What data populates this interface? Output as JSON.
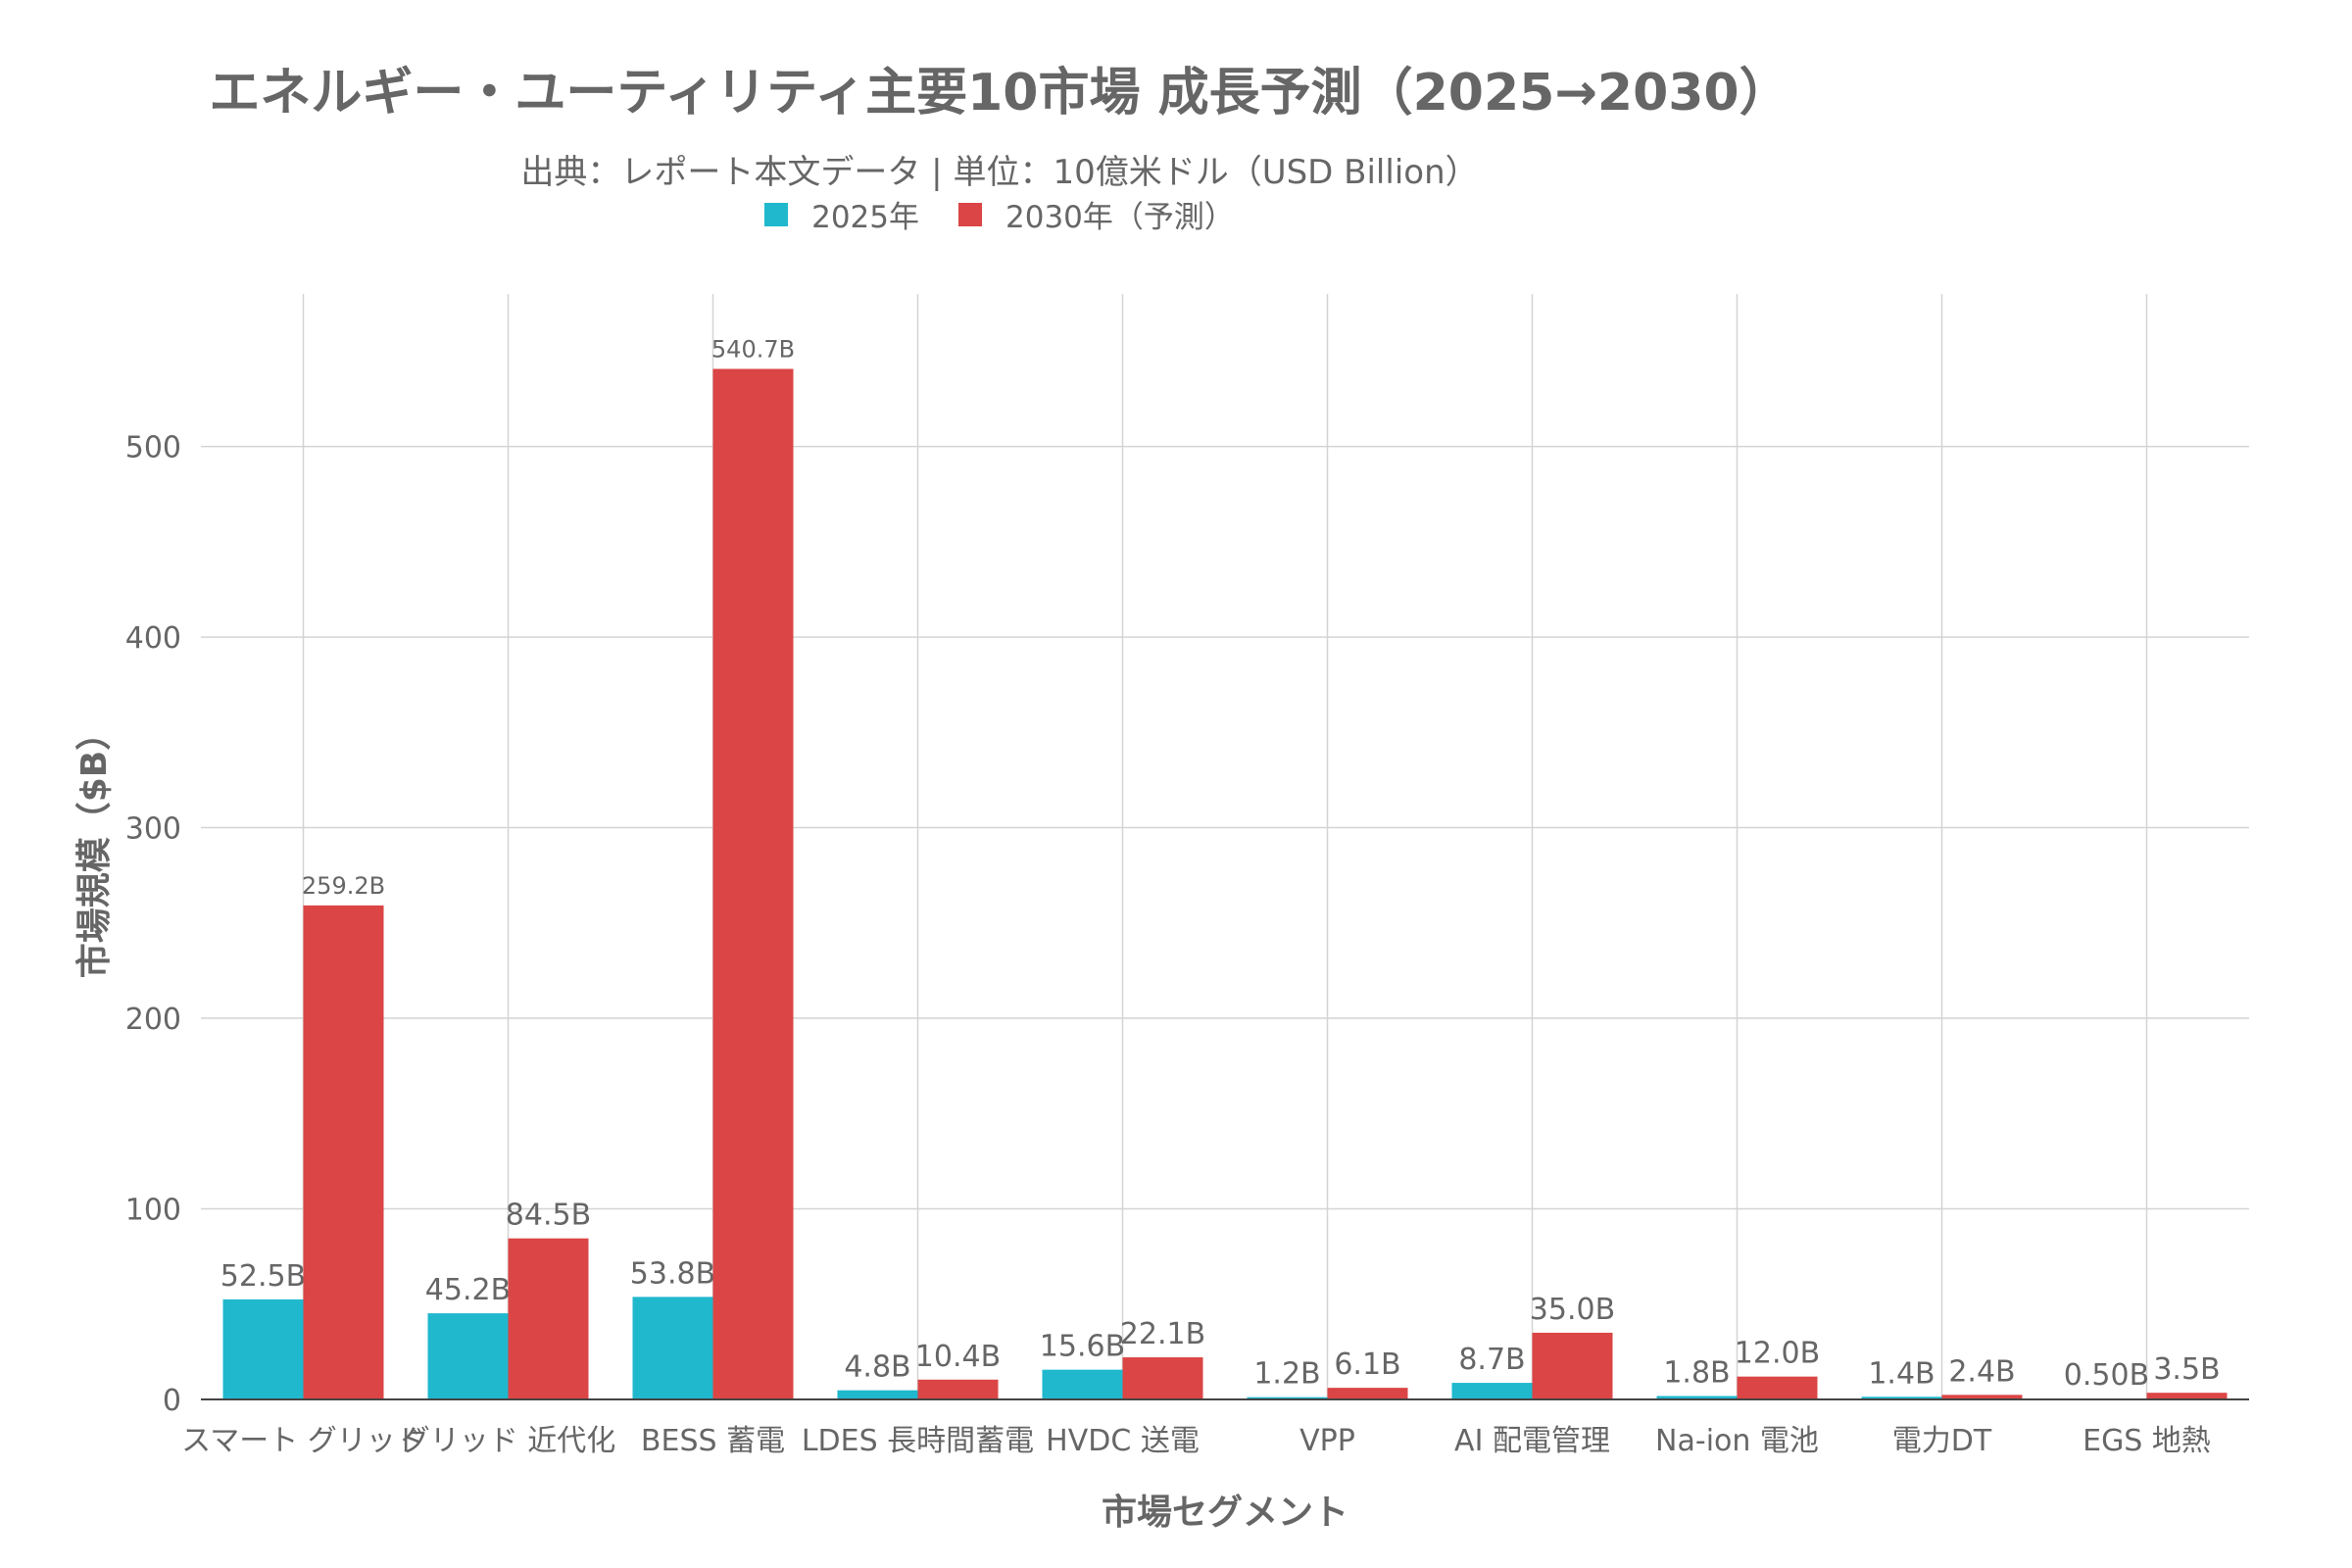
{
  "chart_data": {
    "type": "bar",
    "title": "エネルギー・ユーティリティ主要10市場 成長予測（2025→2030）",
    "subtitle": "出典：レポート本文データ | 単位：10億米ドル（USD Billion）",
    "xlabel": "市場セグメント",
    "ylabel": "市場規模（$B）",
    "categories": [
      "スマート グリッド",
      "グリッド 近代化",
      "BESS 蓄電",
      "LDES 長時間蓄電",
      "HVDC 送電",
      "VPP",
      "AI 配電管理",
      "Na-ion 電池",
      "電力DT",
      "EGS 地熱"
    ],
    "series": [
      {
        "name": "2025年",
        "color": "#1FB8CD",
        "values": [
          52.5,
          45.2,
          53.8,
          4.8,
          15.6,
          1.2,
          8.7,
          1.8,
          1.4,
          0.5
        ],
        "labels": [
          "52.5B",
          "45.2B",
          "53.8B",
          "4.8B",
          "15.6B",
          "1.2B",
          "8.7B",
          "1.8B",
          "1.4B",
          "0.50B"
        ]
      },
      {
        "name": "2030年（予測）",
        "color": "#DB4545",
        "values": [
          259.2,
          84.5,
          540.7,
          10.4,
          22.1,
          6.1,
          35.0,
          12.0,
          2.4,
          3.5
        ],
        "labels": [
          "259.2B",
          "84.5B",
          "540.7B",
          "10.4B",
          "22.1B",
          "6.1B",
          "35.0B",
          "12.0B",
          "2.4B",
          "3.5B"
        ]
      }
    ],
    "yticks": [
      0,
      100,
      200,
      300,
      400,
      500
    ],
    "ylim": [
      0,
      580
    ],
    "grid": true,
    "legend_position": "top-center"
  }
}
